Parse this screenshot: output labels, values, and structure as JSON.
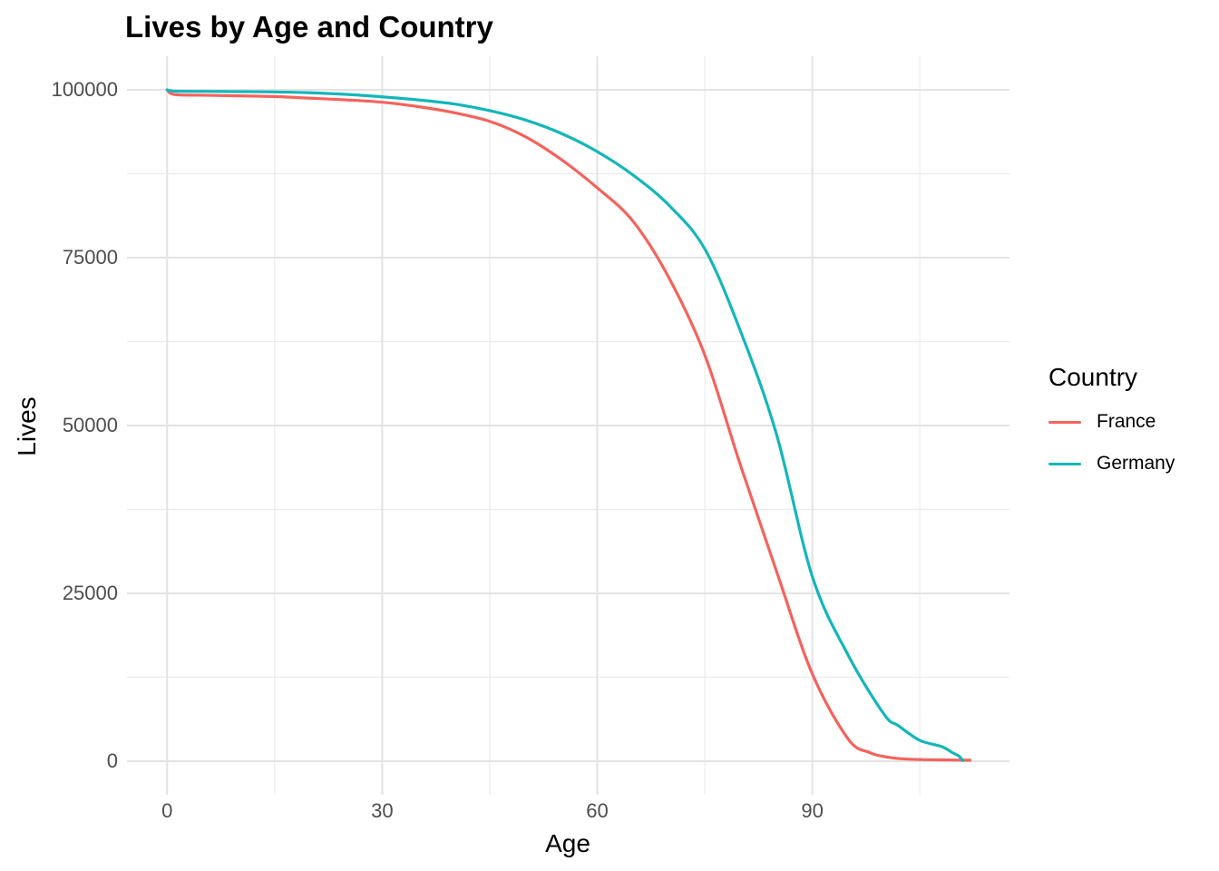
{
  "chart_data": {
    "type": "line",
    "title": "Lives by Age and Country",
    "xlabel": "Age",
    "ylabel": "Lives",
    "legend_title": "Country",
    "legend_position": "right",
    "grid": true,
    "xlim": [
      -5.6,
      117.5
    ],
    "ylim": [
      -5000,
      105000
    ],
    "x_ticks": [
      0,
      30,
      60,
      90
    ],
    "x_tick_labels": [
      "0",
      "30",
      "60",
      "90"
    ],
    "x_minor_gridlines": [
      15,
      45,
      75,
      105
    ],
    "y_ticks": [
      0,
      25000,
      50000,
      75000,
      100000
    ],
    "y_tick_labels": [
      "0",
      "25000",
      "50000",
      "75000",
      "100000"
    ],
    "y_minor_gridlines": [
      12500,
      37500,
      62500,
      87500
    ],
    "colors": {
      "background": "#FFFFFF",
      "grid_major": "#E3E3E3",
      "grid_minor": "#ECECEC",
      "tick_label": "#4D4D4D",
      "text": "#000000"
    },
    "series": [
      {
        "name": "France",
        "color": "#F4635D",
        "points": [
          [
            0,
            100000
          ],
          [
            1,
            99300
          ],
          [
            5,
            99200
          ],
          [
            10,
            99100
          ],
          [
            15,
            99000
          ],
          [
            20,
            98750
          ],
          [
            25,
            98500
          ],
          [
            30,
            98150
          ],
          [
            35,
            97500
          ],
          [
            40,
            96600
          ],
          [
            45,
            95300
          ],
          [
            50,
            93000
          ],
          [
            55,
            89600
          ],
          [
            60,
            85400
          ],
          [
            65,
            80400
          ],
          [
            70,
            72000
          ],
          [
            75,
            60500
          ],
          [
            80,
            44000
          ],
          [
            85,
            28300
          ],
          [
            90,
            13000
          ],
          [
            95,
            3300
          ],
          [
            98,
            1300
          ],
          [
            100,
            700
          ],
          [
            102,
            400
          ],
          [
            105,
            250
          ],
          [
            108,
            200
          ],
          [
            112,
            150
          ]
        ]
      },
      {
        "name": "Germany",
        "color": "#14B6BA",
        "points": [
          [
            0,
            100000
          ],
          [
            1,
            99800
          ],
          [
            5,
            99770
          ],
          [
            10,
            99730
          ],
          [
            15,
            99690
          ],
          [
            20,
            99560
          ],
          [
            25,
            99320
          ],
          [
            30,
            98950
          ],
          [
            35,
            98500
          ],
          [
            40,
            97900
          ],
          [
            45,
            96900
          ],
          [
            50,
            95500
          ],
          [
            55,
            93500
          ],
          [
            60,
            90800
          ],
          [
            65,
            87300
          ],
          [
            70,
            82800
          ],
          [
            75,
            76300
          ],
          [
            80,
            64000
          ],
          [
            85,
            48700
          ],
          [
            90,
            27500
          ],
          [
            95,
            15800
          ],
          [
            100,
            7000
          ],
          [
            102,
            5300
          ],
          [
            105,
            3100
          ],
          [
            108,
            2200
          ],
          [
            109.5,
            1300
          ],
          [
            110.4,
            800
          ],
          [
            111,
            100
          ]
        ]
      }
    ]
  }
}
